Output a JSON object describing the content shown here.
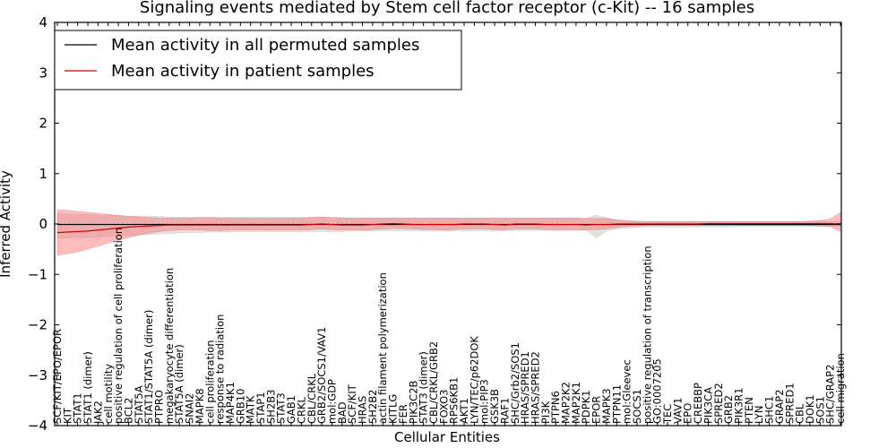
{
  "chart_data": {
    "type": "line",
    "title": "Signaling events mediated by Stem cell factor receptor (c-Kit) -- 16 samples",
    "xlabel": "Cellular Entities",
    "ylabel": "Inferred Activity",
    "ylim": [
      -4,
      4
    ],
    "yticks": [
      4,
      3,
      2,
      1,
      0,
      -1,
      -2,
      -3,
      -4
    ],
    "ytick_labels": [
      "4",
      "3",
      "2",
      "1",
      "0",
      "−1",
      "−2",
      "−3",
      "−4"
    ],
    "grid": false,
    "legend_position": "top-left",
    "categories": [
      "SCF/KIT/EPO/EPOR",
      "KIT",
      "STAT1",
      "STAT1 (dimer)",
      "JAK2",
      "cell motility",
      "positive regulation of cell proliferation",
      "BCL2",
      "STAT5A",
      "STAT1/STAT5A (dimer)",
      "PTPRO",
      "megakaryocyte differentiation",
      "STAT5A (dimer)",
      "SNAI2",
      "MAPK8",
      "cell proliferation",
      "response to radiation",
      "MAP4K1",
      "GRB10",
      "MATK",
      "STAP1",
      "SH2B3",
      "STAT3",
      "GAB1",
      "CRKL",
      "CBL/CRKL",
      "GRB2/SOCS1/VAV1",
      "mol:GDP",
      "BAD",
      "SCF/KIT",
      "HRAS",
      "SH2B2",
      "actin filament polymerization",
      "KITLG",
      "FER",
      "PIK3C2B",
      "STAT3 (dimer)",
      "CBL/CRKL/GRB2",
      "FOXO3",
      "RPS6KB1",
      "AKT1",
      "LYN/TEC/p62DOK",
      "mol:PIP3",
      "GSK3B",
      "RAF1",
      "SHC/Grb2/SOS1",
      "HRAS/SPRED1",
      "HRAS/SPRED2",
      "PI3K",
      "PTPN6",
      "MAP2K2",
      "MAP2K1",
      "PDPK1",
      "EPOR",
      "MAPK3",
      "PTPN11",
      "mol:Gleevec",
      "SOCS1",
      "positive regulation of transcription",
      "GO:0007205",
      "TEC",
      "VAV1",
      "EPO",
      "CREBBP",
      "PIK3CA",
      "SPRED2",
      "GRB2",
      "PIK3R1",
      "PTEN",
      "LYN",
      "SHC1",
      "GRAP2",
      "SPRED1",
      "CBL",
      "DOK1",
      "SOS1",
      "SHC/GRAP2",
      "cell migration"
    ],
    "series": [
      {
        "name": "Mean activity in all permuted samples",
        "color": "#000000",
        "values": [
          -0.01,
          -0.01,
          -0.01,
          -0.01,
          -0.01,
          -0.01,
          -0.01,
          -0.01,
          -0.01,
          -0.01,
          -0.01,
          -0.01,
          -0.01,
          -0.01,
          -0.01,
          -0.01,
          -0.01,
          -0.01,
          -0.01,
          -0.01,
          -0.01,
          -0.01,
          -0.01,
          -0.01,
          -0.01,
          -0.01,
          -0.01,
          -0.01,
          -0.01,
          -0.01,
          -0.01,
          -0.01,
          -0.01,
          -0.01,
          -0.01,
          -0.01,
          -0.01,
          -0.01,
          -0.01,
          -0.01,
          -0.01,
          -0.01,
          -0.01,
          -0.01,
          -0.01,
          -0.01,
          -0.01,
          -0.01,
          -0.01,
          -0.01,
          -0.01,
          -0.01,
          -0.01,
          -0.01,
          -0.01,
          -0.01,
          -0.01,
          -0.01,
          -0.01,
          -0.01,
          -0.01,
          -0.01,
          -0.01,
          -0.01,
          -0.01,
          -0.01,
          -0.01,
          -0.01,
          -0.01,
          -0.01,
          -0.01,
          -0.01,
          -0.01,
          -0.01,
          -0.01,
          -0.01,
          -0.01,
          -0.01
        ],
        "lower": [
          -0.28,
          -0.28,
          -0.27,
          -0.27,
          -0.26,
          -0.25,
          -0.24,
          -0.23,
          -0.22,
          -0.21,
          -0.2,
          -0.19,
          -0.18,
          -0.17,
          -0.17,
          -0.16,
          -0.16,
          -0.16,
          -0.15,
          -0.15,
          -0.15,
          -0.15,
          -0.15,
          -0.15,
          -0.15,
          -0.15,
          -0.15,
          -0.15,
          -0.15,
          -0.14,
          -0.14,
          -0.14,
          -0.14,
          -0.14,
          -0.14,
          -0.14,
          -0.14,
          -0.14,
          -0.14,
          -0.14,
          -0.14,
          -0.14,
          -0.14,
          -0.14,
          -0.13,
          -0.13,
          -0.13,
          -0.13,
          -0.13,
          -0.13,
          -0.13,
          -0.13,
          -0.12,
          -0.28,
          -0.14,
          -0.1,
          -0.08,
          -0.07,
          -0.06,
          -0.06,
          -0.06,
          -0.06,
          -0.06,
          -0.06,
          -0.06,
          -0.06,
          -0.06,
          -0.05,
          -0.05,
          -0.05,
          -0.05,
          -0.05,
          -0.05,
          -0.05,
          -0.05,
          -0.05,
          -0.05,
          -0.05
        ],
        "upper": [
          0.2,
          0.2,
          0.19,
          0.19,
          0.18,
          0.18,
          0.17,
          0.16,
          0.16,
          0.15,
          0.15,
          0.14,
          0.14,
          0.13,
          0.13,
          0.13,
          0.13,
          0.13,
          0.13,
          0.13,
          0.13,
          0.13,
          0.13,
          0.13,
          0.13,
          0.13,
          0.13,
          0.13,
          0.13,
          0.12,
          0.12,
          0.12,
          0.12,
          0.12,
          0.12,
          0.12,
          0.12,
          0.12,
          0.12,
          0.12,
          0.12,
          0.12,
          0.12,
          0.12,
          0.12,
          0.12,
          0.12,
          0.12,
          0.12,
          0.12,
          0.12,
          0.12,
          0.11,
          0.18,
          0.12,
          0.09,
          0.07,
          0.06,
          0.05,
          0.05,
          0.05,
          0.05,
          0.05,
          0.05,
          0.05,
          0.05,
          0.05,
          0.05,
          0.05,
          0.05,
          0.05,
          0.05,
          0.05,
          0.05,
          0.05,
          0.05,
          0.05,
          0.05
        ]
      },
      {
        "name": "Mean activity in patient samples",
        "color": "#cc0000",
        "values": [
          -0.17,
          -0.16,
          -0.15,
          -0.14,
          -0.12,
          -0.1,
          -0.08,
          -0.06,
          -0.05,
          -0.04,
          -0.03,
          -0.02,
          -0.02,
          -0.02,
          -0.02,
          -0.02,
          -0.02,
          -0.02,
          -0.02,
          -0.02,
          -0.02,
          -0.02,
          -0.02,
          -0.02,
          -0.02,
          -0.01,
          0.0,
          -0.01,
          -0.02,
          -0.02,
          -0.02,
          -0.01,
          0.0,
          0.01,
          0.0,
          -0.01,
          -0.01,
          -0.01,
          -0.01,
          -0.01,
          0.0,
          0.0,
          0.0,
          -0.01,
          -0.02,
          0.0,
          0.0,
          0.0,
          -0.01,
          -0.01,
          -0.01,
          -0.01,
          -0.02,
          -0.01,
          -0.01,
          0.0,
          0.0,
          0.0,
          0.0,
          0.0,
          0.0,
          0.0,
          0.0,
          0.0,
          0.01,
          0.01,
          0.01,
          0.01,
          0.01,
          0.01,
          0.01,
          0.01,
          0.01,
          0.01,
          0.01,
          0.01,
          0.01,
          0.0
        ],
        "lower": [
          -0.62,
          -0.59,
          -0.55,
          -0.5,
          -0.44,
          -0.38,
          -0.32,
          -0.27,
          -0.22,
          -0.18,
          -0.15,
          -0.13,
          -0.12,
          -0.12,
          -0.12,
          -0.13,
          -0.13,
          -0.12,
          -0.12,
          -0.12,
          -0.12,
          -0.12,
          -0.12,
          -0.12,
          -0.12,
          -0.11,
          -0.1,
          -0.11,
          -0.12,
          -0.12,
          -0.12,
          -0.11,
          -0.1,
          -0.09,
          -0.09,
          -0.1,
          -0.11,
          -0.11,
          -0.12,
          -0.11,
          -0.1,
          -0.1,
          -0.1,
          -0.11,
          -0.12,
          -0.1,
          -0.1,
          -0.1,
          -0.11,
          -0.11,
          -0.11,
          -0.11,
          -0.12,
          -0.11,
          -0.1,
          -0.07,
          -0.05,
          -0.04,
          -0.03,
          -0.03,
          -0.03,
          -0.03,
          -0.03,
          -0.03,
          -0.03,
          -0.03,
          -0.03,
          -0.03,
          -0.03,
          -0.03,
          -0.03,
          -0.03,
          -0.03,
          -0.03,
          -0.03,
          -0.04,
          -0.05,
          -0.15
        ],
        "upper": [
          0.28,
          0.27,
          0.25,
          0.23,
          0.21,
          0.19,
          0.17,
          0.15,
          0.14,
          0.13,
          0.12,
          0.12,
          0.12,
          0.12,
          0.13,
          0.13,
          0.12,
          0.12,
          0.12,
          0.12,
          0.12,
          0.12,
          0.12,
          0.12,
          0.12,
          0.13,
          0.14,
          0.13,
          0.12,
          0.12,
          0.12,
          0.12,
          0.12,
          0.12,
          0.12,
          0.12,
          0.12,
          0.12,
          0.12,
          0.12,
          0.12,
          0.12,
          0.12,
          0.12,
          0.12,
          0.12,
          0.12,
          0.12,
          0.12,
          0.12,
          0.12,
          0.12,
          0.11,
          0.11,
          0.11,
          0.08,
          0.06,
          0.05,
          0.05,
          0.05,
          0.05,
          0.05,
          0.05,
          0.05,
          0.05,
          0.05,
          0.05,
          0.05,
          0.05,
          0.05,
          0.05,
          0.05,
          0.05,
          0.05,
          0.06,
          0.07,
          0.1,
          0.23
        ]
      }
    ]
  }
}
